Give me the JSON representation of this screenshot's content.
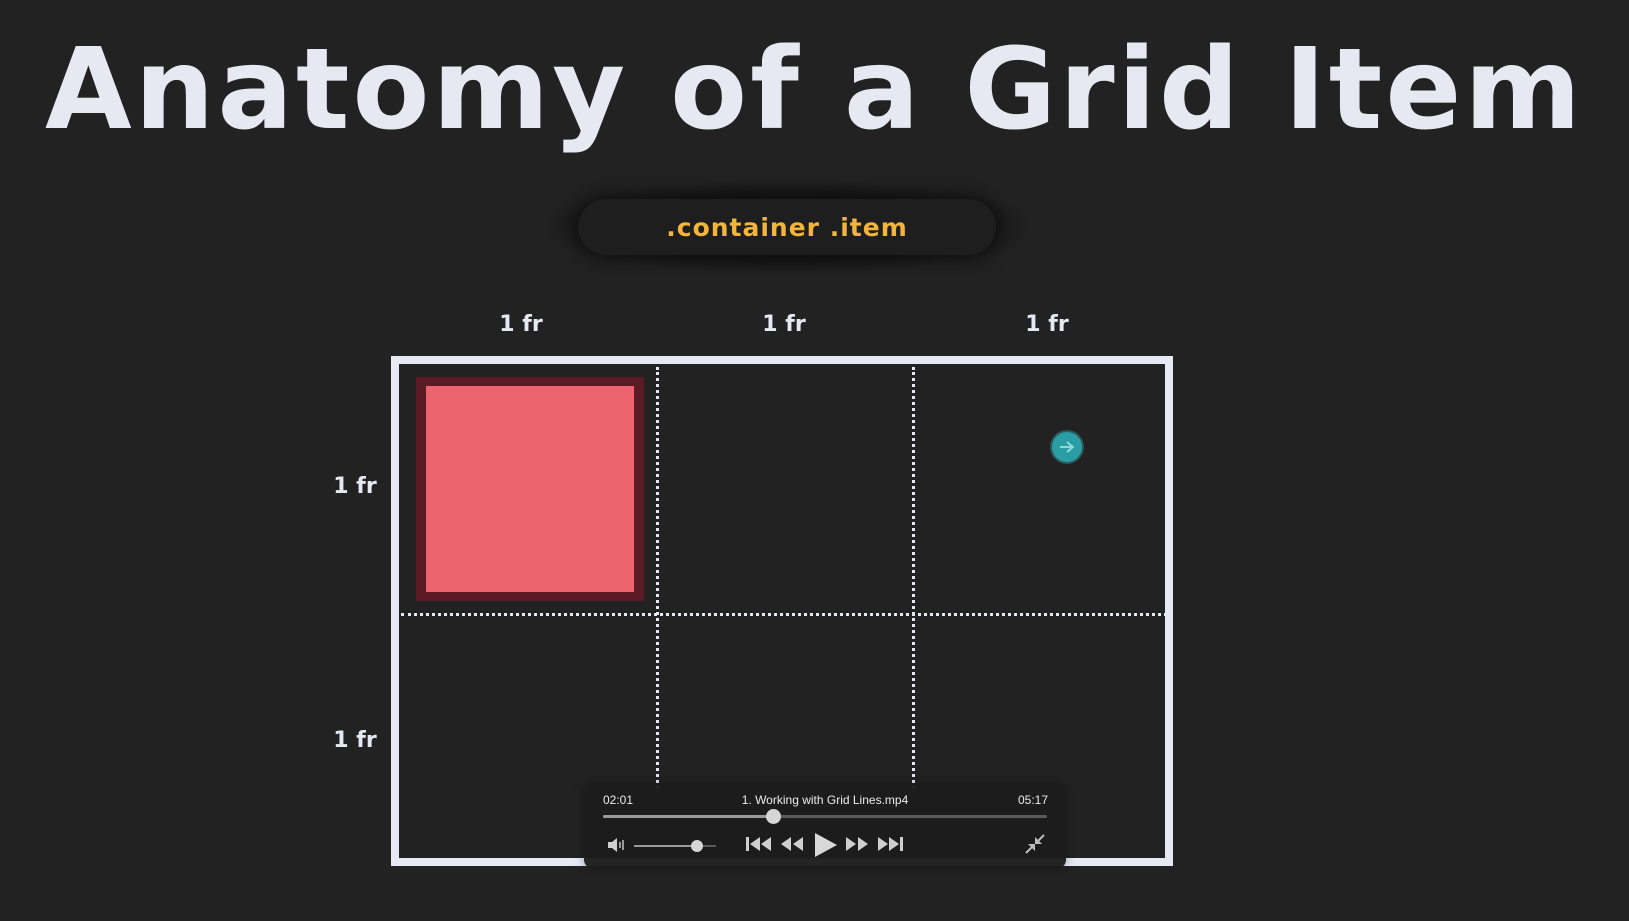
{
  "slide": {
    "title": "Anatomy of a Grid Item",
    "selector": ".container .item",
    "column_labels": [
      "1 fr",
      "1 fr",
      "1 fr"
    ],
    "row_labels": [
      "1 fr",
      "1 fr"
    ]
  },
  "player": {
    "elapsed": "02:01",
    "filename": "1. Working with Grid Lines.mp4",
    "duration": "05:17",
    "progress_fraction": 0.382,
    "volume_fraction": 0.77,
    "controls": [
      "volume-icon",
      "skip-back-icon",
      "rewind-icon",
      "play-icon",
      "fast-forward-icon",
      "skip-forward-icon",
      "exit-fullscreen-icon"
    ]
  },
  "colors": {
    "background": "#222222",
    "title": "#e6e8f2",
    "selector": "#f2b43a",
    "grid_item": "#ec646e",
    "cursor": "#2a9ea4"
  }
}
